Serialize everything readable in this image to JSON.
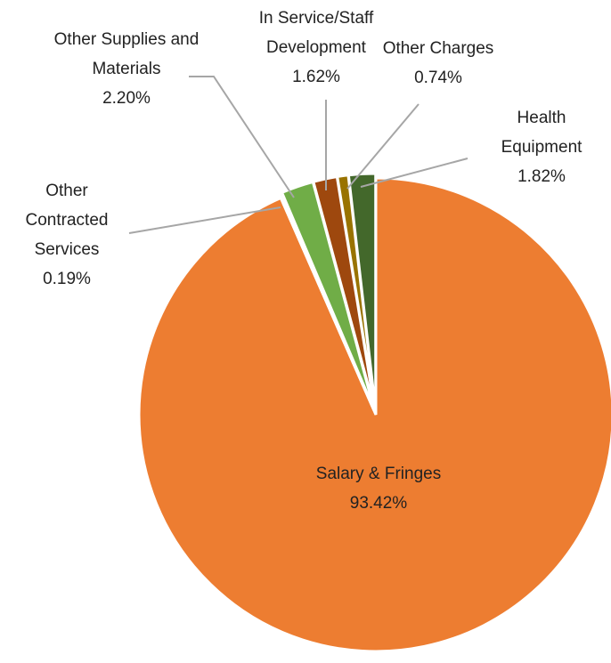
{
  "chart_data": {
    "type": "pie",
    "categories": [
      "Salary & Fringes",
      "Other Contracted Services",
      "Other Supplies and Materials",
      "In Service/Staff Development",
      "Other Charges",
      "Health Equipment"
    ],
    "values": [
      93.42,
      0.19,
      2.2,
      1.62,
      0.74,
      1.82
    ],
    "value_labels": [
      "93.42%",
      "0.19%",
      "2.20%",
      "1.62%",
      "0.74%",
      "1.82%"
    ],
    "colors": [
      "#ED7D31",
      "#D9D9D9",
      "#70AD47",
      "#9E480E",
      "#997300",
      "#43682B"
    ]
  }
}
